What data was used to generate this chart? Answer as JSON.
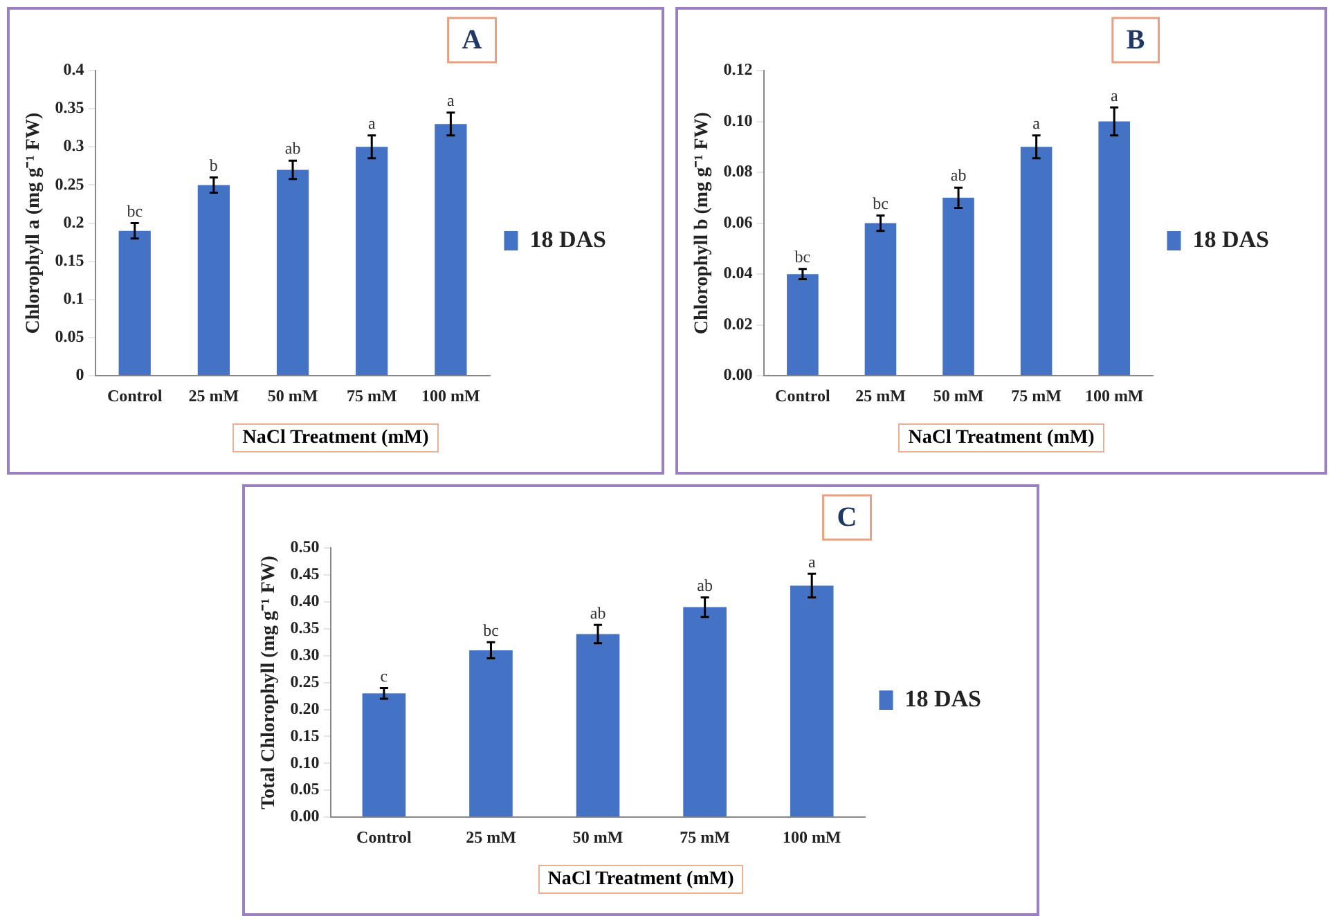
{
  "chart_data": [
    {
      "type": "bar",
      "title": "A",
      "xlabel": "NaCl Treatment (mM)",
      "ylabel": "Chlorophyll a (mg g⁻¹ FW)",
      "categories": [
        "Control",
        "25 mM",
        "50 mM",
        "75 mM",
        "100 mM"
      ],
      "series": [
        {
          "name": "18 DAS",
          "color": "#4472c4",
          "values": [
            0.19,
            0.25,
            0.27,
            0.3,
            0.33
          ],
          "errors": [
            0.01,
            0.01,
            0.012,
            0.015,
            0.015
          ]
        }
      ],
      "ylim": [
        0,
        0.4
      ],
      "yticks": [
        0,
        0.05,
        0.1,
        0.15,
        0.2,
        0.25,
        0.3,
        0.35,
        0.4
      ],
      "grid": false,
      "legend": "right",
      "annotations": [
        {
          "text": "bc",
          "x": "Control",
          "y": 0.2
        },
        {
          "text": "b",
          "x": "25 mM",
          "y": 0.26
        },
        {
          "text": "ab",
          "x": "50 mM",
          "y": 0.282
        },
        {
          "text": "a",
          "x": "75 mM",
          "y": 0.315
        },
        {
          "text": "a",
          "x": "100 mM",
          "y": 0.345
        }
      ]
    },
    {
      "type": "bar",
      "title": "B",
      "xlabel": "NaCl Treatment (mM)",
      "ylabel": "Chlorophyll b (mg g⁻¹ FW)",
      "categories": [
        "Control",
        "25 mM",
        "50 mM",
        "75 mM",
        "100 mM"
      ],
      "series": [
        {
          "name": "18 DAS",
          "color": "#4472c4",
          "values": [
            0.04,
            0.06,
            0.07,
            0.09,
            0.1
          ],
          "errors": [
            0.002,
            0.003,
            0.004,
            0.0045,
            0.0055
          ]
        }
      ],
      "ylim": [
        0,
        0.12
      ],
      "yticks": [
        {
          "value": 0,
          "label": "0.00"
        },
        {
          "value": 0.02,
          "label": "0.02"
        },
        {
          "value": 0.04,
          "label": "0.04"
        },
        {
          "value": 0.06,
          "label": "0.06"
        },
        {
          "value": 0.08,
          "label": "0.08"
        },
        {
          "value": 0.1,
          "label": "0.10"
        },
        {
          "value": 0.12,
          "label": "0.12"
        }
      ],
      "grid": false,
      "legend": "right",
      "annotations": [
        {
          "text": "bc",
          "x": "Control",
          "y": 0.042
        },
        {
          "text": "bc",
          "x": "25 mM",
          "y": 0.063
        },
        {
          "text": "ab",
          "x": "50 mM",
          "y": 0.074
        },
        {
          "text": "a",
          "x": "75 mM",
          "y": 0.0945
        },
        {
          "text": "a",
          "x": "100 mM",
          "y": 0.1055
        }
      ]
    },
    {
      "type": "bar",
      "title": "C",
      "xlabel": "NaCl Treatment (mM)",
      "ylabel": "Total Chlorophyll (mg g⁻¹ FW)",
      "categories": [
        "Control",
        "25 mM",
        "50 mM",
        "75 mM",
        "100 mM"
      ],
      "series": [
        {
          "name": "18 DAS",
          "color": "#4472c4",
          "values": [
            0.23,
            0.31,
            0.34,
            0.39,
            0.43
          ],
          "errors": [
            0.01,
            0.015,
            0.017,
            0.018,
            0.022
          ]
        }
      ],
      "ylim": [
        0,
        0.5
      ],
      "yticks": [
        {
          "value": 0,
          "label": "0.00"
        },
        {
          "value": 0.05,
          "label": "0.05"
        },
        {
          "value": 0.1,
          "label": "0.10"
        },
        {
          "value": 0.15,
          "label": "0.15"
        },
        {
          "value": 0.2,
          "label": "0.20"
        },
        {
          "value": 0.25,
          "label": "0.25"
        },
        {
          "value": 0.3,
          "label": "0.30"
        },
        {
          "value": 0.35,
          "label": "0.35"
        },
        {
          "value": 0.4,
          "label": "0.40"
        },
        {
          "value": 0.45,
          "label": "0.45"
        },
        {
          "value": 0.5,
          "label": "0.50"
        }
      ],
      "grid": false,
      "legend": "right",
      "annotations": [
        {
          "text": "c",
          "x": "Control",
          "y": 0.24
        },
        {
          "text": "bc",
          "x": "25 mM",
          "y": 0.325
        },
        {
          "text": "ab",
          "x": "50 mM",
          "y": 0.357
        },
        {
          "text": "ab",
          "x": "75 mM",
          "y": 0.408
        },
        {
          "text": "a",
          "x": "100 mM",
          "y": 0.452
        }
      ]
    }
  ]
}
